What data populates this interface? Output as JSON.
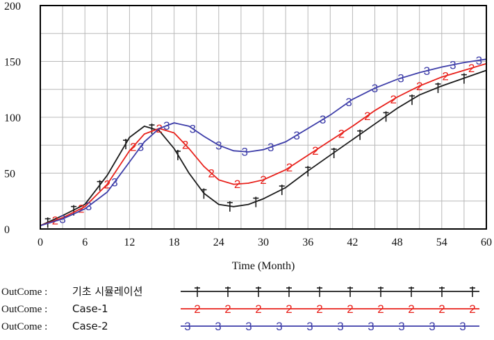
{
  "chart_data": {
    "type": "line",
    "title": "",
    "xlabel": "Time (Month)",
    "ylabel": "",
    "xlim": [
      0,
      60
    ],
    "ylim": [
      0,
      200
    ],
    "x_ticks": [
      "0",
      "6",
      "12",
      "18",
      "24",
      "30",
      "36",
      "42",
      "48",
      "54",
      "60"
    ],
    "y_ticks": [
      "0",
      "50",
      "100",
      "150",
      "200"
    ],
    "grid": true,
    "legend_position": "bottom",
    "x": [
      0,
      3,
      6,
      9,
      12,
      14,
      16,
      18,
      20,
      22,
      24,
      26,
      28,
      30,
      33,
      36,
      39,
      42,
      45,
      48,
      51,
      54,
      57,
      60
    ],
    "series": [
      {
        "variable": "OutCome",
        "name": "기초 시뮬레이션",
        "marker": "†",
        "color": "#1a1a1a",
        "values": [
          3,
          12,
          22,
          48,
          82,
          92,
          88,
          72,
          50,
          32,
          22,
          20,
          22,
          27,
          37,
          52,
          66,
          80,
          94,
          108,
          120,
          128,
          135,
          142
        ]
      },
      {
        "variable": "OutCome",
        "name": "Case-1",
        "marker": "2",
        "color": "#e8201a",
        "values": [
          3,
          10,
          20,
          40,
          70,
          85,
          90,
          86,
          72,
          56,
          44,
          40,
          41,
          44,
          53,
          66,
          79,
          92,
          106,
          118,
          128,
          136,
          142,
          148
        ]
      },
      {
        "variable": "OutCome",
        "name": "Case-2",
        "marker": "3",
        "color": "#3c3ca8",
        "values": [
          3,
          9,
          18,
          33,
          60,
          78,
          90,
          95,
          92,
          83,
          75,
          70,
          69,
          71,
          78,
          90,
          102,
          116,
          126,
          134,
          140,
          145,
          149,
          152
        ]
      }
    ]
  }
}
